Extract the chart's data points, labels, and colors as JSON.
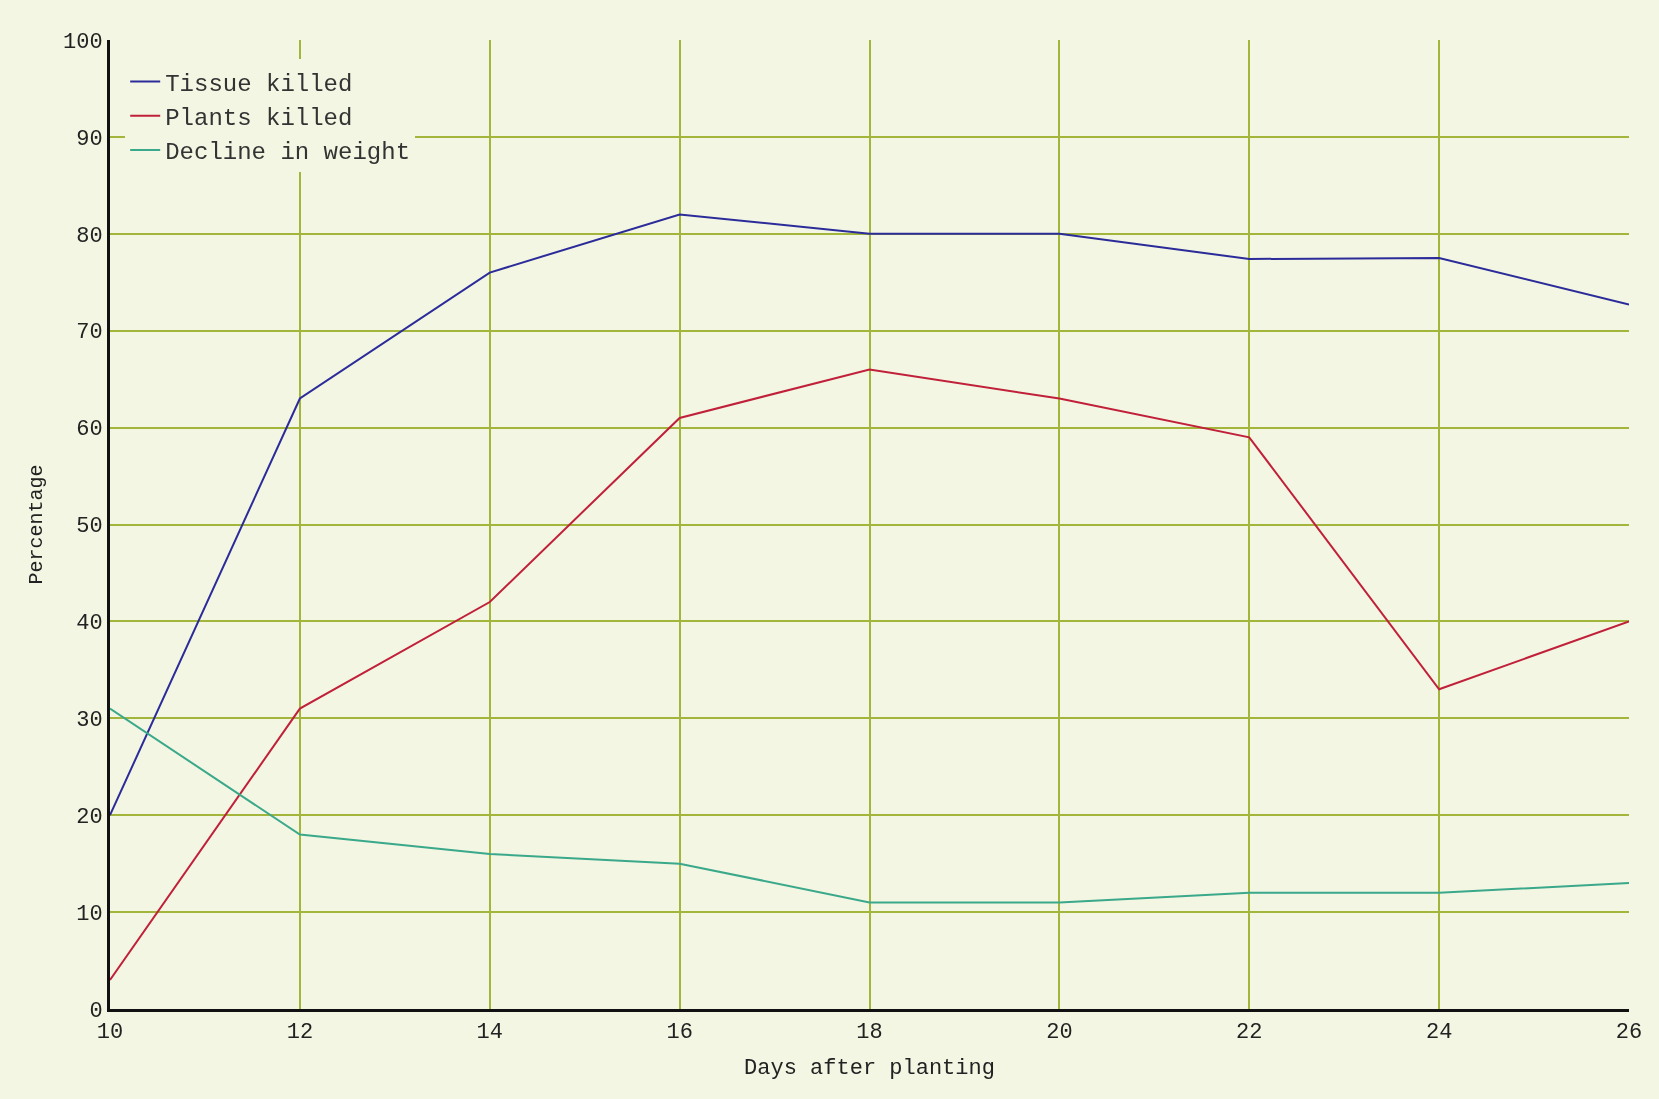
{
  "chart_data": {
    "type": "line",
    "xlabel": "Days after planting",
    "ylabel": "Percentage",
    "x": [
      10,
      12,
      14,
      16,
      18,
      20,
      22,
      24,
      26
    ],
    "series": [
      {
        "name": "Tissue killed",
        "color": "#2b2b9a",
        "values": [
          20,
          63,
          76,
          82,
          80,
          80,
          77.4,
          77.5,
          72.7
        ]
      },
      {
        "name": "Plants killed",
        "color": "#c0203a",
        "values": [
          3,
          31,
          42,
          61,
          66,
          63,
          59,
          33,
          40
        ]
      },
      {
        "name": "Decline in weight",
        "color": "#3aa88a",
        "values": [
          31,
          18,
          16,
          15,
          11,
          11,
          12,
          12,
          13
        ]
      }
    ],
    "xlim": [
      10,
      26
    ],
    "xticks": [
      10,
      12,
      14,
      16,
      18,
      20,
      22,
      24,
      26
    ],
    "ylim": [
      0,
      100
    ],
    "yticks": [
      0,
      10,
      20,
      30,
      40,
      50,
      60,
      70,
      80,
      90,
      100
    ],
    "grid": true,
    "legend": "top left",
    "marker": "none",
    "line_style": "solid"
  }
}
